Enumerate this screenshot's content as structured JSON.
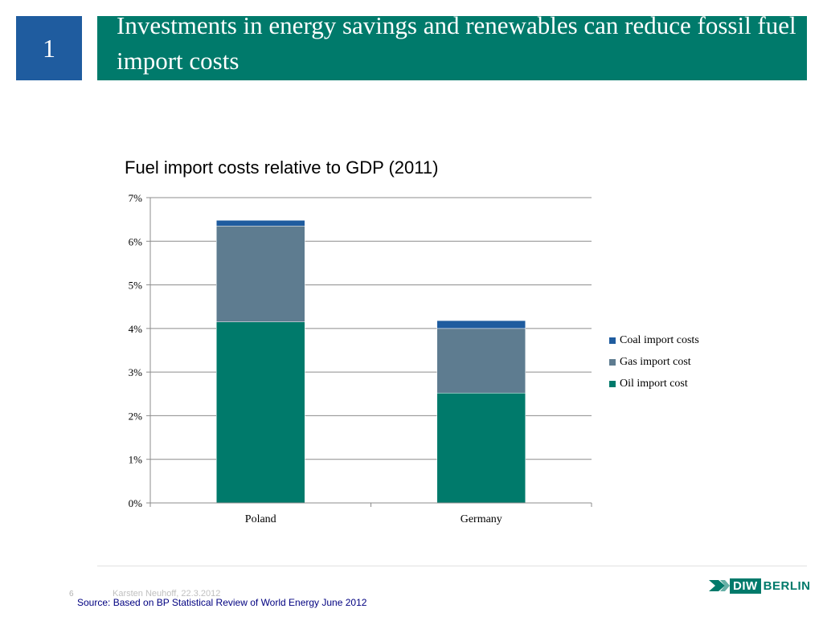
{
  "slide": {
    "number": "1",
    "title": "Investments in energy savings and renewables can reduce fossil fuel import costs",
    "page": "6",
    "author": "Karsten Neuhoff, 22.3.2012",
    "source": "Source: Based on BP Statistical Review of World Energy June 2012",
    "logo_text": "DIW BERLIN"
  },
  "colors": {
    "accent": "#007a6b",
    "badge": "#1f5c9f",
    "oil": "#007a6b",
    "gas": "#5e7c90",
    "coal": "#1f5c9f"
  },
  "chart_data": {
    "type": "bar",
    "stacked": true,
    "title": "Fuel import costs relative to GDP (2011)",
    "categories": [
      "Poland",
      "Germany"
    ],
    "series": [
      {
        "name": "Oil import cost",
        "values": [
          4.15,
          2.52
        ]
      },
      {
        "name": "Gas import cost",
        "values": [
          2.2,
          1.48
        ]
      },
      {
        "name": "Coal import costs",
        "values": [
          0.13,
          0.18
        ]
      }
    ],
    "ylim": [
      0,
      7
    ],
    "yticks": [
      "0%",
      "1%",
      "2%",
      "3%",
      "4%",
      "5%",
      "6%",
      "7%"
    ],
    "grid": true,
    "legend": [
      "Coal import costs",
      "Gas import cost",
      "Oil import cost"
    ],
    "legend_position": "right"
  }
}
